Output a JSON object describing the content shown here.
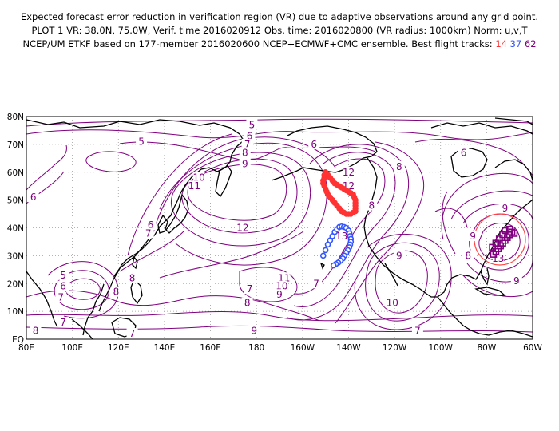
{
  "titles": {
    "line1": "Expected forecast error reduction in verification region (VR) due to adaptive observations around any grid point.",
    "line2": "PLOT 1 VR: 38.0N, 75.0W, Verif. time 2016020912 Obs. time: 2016020800 (VR radius: 1000km) Norm: u,v,T",
    "line3_prefix": "NCEP/UM ETKF based on 177-member 2016020600 NCEP+ECMWF+CMC ensemble. Best flight tracks:",
    "tracks": [
      {
        "label": "14",
        "color": "#ff3333"
      },
      {
        "label": "37",
        "color": "#3355ff"
      },
      {
        "label": "62",
        "color": "#800080"
      }
    ]
  },
  "map": {
    "lat_labels": [
      "80N",
      "70N",
      "60N",
      "50N",
      "40N",
      "30N",
      "20N",
      "10N",
      "EQ"
    ],
    "lon_labels": [
      "80E",
      "100E",
      "120E",
      "140E",
      "160E",
      "180",
      "160W",
      "140W",
      "120W",
      "100W",
      "80W",
      "60W"
    ],
    "colors": {
      "contour": "#800080",
      "coast": "#000000",
      "track14": "#ff3333",
      "track37": "#3355ff",
      "track62": "#800080",
      "verification_circle": "#ff4444"
    },
    "contour_labels": [
      {
        "text": "5",
        "lon": 178,
        "lat": 77
      },
      {
        "text": "5",
        "lon": 130,
        "lat": 71
      },
      {
        "text": "6",
        "lon": 177,
        "lat": 73
      },
      {
        "text": "7",
        "lon": 176,
        "lat": 70
      },
      {
        "text": "8",
        "lon": 175,
        "lat": 67
      },
      {
        "text": "9",
        "lon": 175,
        "lat": 63
      },
      {
        "text": "6",
        "lon": -155,
        "lat": 70
      },
      {
        "text": "6",
        "lon": -90,
        "lat": 67
      },
      {
        "text": "8",
        "lon": -118,
        "lat": 62
      },
      {
        "text": "10",
        "lon": 155,
        "lat": 58
      },
      {
        "text": "11",
        "lon": 153,
        "lat": 55
      },
      {
        "text": "12",
        "lon": -140,
        "lat": 60
      },
      {
        "text": "12",
        "lon": -140,
        "lat": 55
      },
      {
        "text": "6",
        "lon": 83,
        "lat": 51
      },
      {
        "text": "8",
        "lon": -130,
        "lat": 48
      },
      {
        "text": "9",
        "lon": -72,
        "lat": 47
      },
      {
        "text": "12",
        "lon": 174,
        "lat": 40
      },
      {
        "text": "6",
        "lon": 134,
        "lat": 41
      },
      {
        "text": "7",
        "lon": 133,
        "lat": 38
      },
      {
        "text": "13",
        "lon": -143,
        "lat": 37
      },
      {
        "text": "9",
        "lon": -86,
        "lat": 37
      },
      {
        "text": "8",
        "lon": -88,
        "lat": 30
      },
      {
        "text": "9",
        "lon": -118,
        "lat": 30
      },
      {
        "text": "13",
        "lon": -75,
        "lat": 29
      },
      {
        "text": "5",
        "lon": 96,
        "lat": 23
      },
      {
        "text": "8",
        "lon": 126,
        "lat": 22
      },
      {
        "text": "11",
        "lon": -168,
        "lat": 22
      },
      {
        "text": "10",
        "lon": -169,
        "lat": 19
      },
      {
        "text": "9",
        "lon": -170,
        "lat": 16
      },
      {
        "text": "7",
        "lon": -154,
        "lat": 20
      },
      {
        "text": "7",
        "lon": 177,
        "lat": 18
      },
      {
        "text": "6",
        "lon": 96,
        "lat": 19
      },
      {
        "text": "7",
        "lon": 95,
        "lat": 15
      },
      {
        "text": "8",
        "lon": 119,
        "lat": 17
      },
      {
        "text": "8",
        "lon": 176,
        "lat": 13
      },
      {
        "text": "10",
        "lon": -121,
        "lat": 13
      },
      {
        "text": "9",
        "lon": -67,
        "lat": 21
      },
      {
        "text": "9",
        "lon": 179,
        "lat": 3
      },
      {
        "text": "7",
        "lon": 96,
        "lat": 6
      },
      {
        "text": "8",
        "lon": 84,
        "lat": 3
      },
      {
        "text": "7",
        "lon": 126,
        "lat": 2
      },
      {
        "text": "7",
        "lon": -110,
        "lat": 3
      }
    ]
  }
}
